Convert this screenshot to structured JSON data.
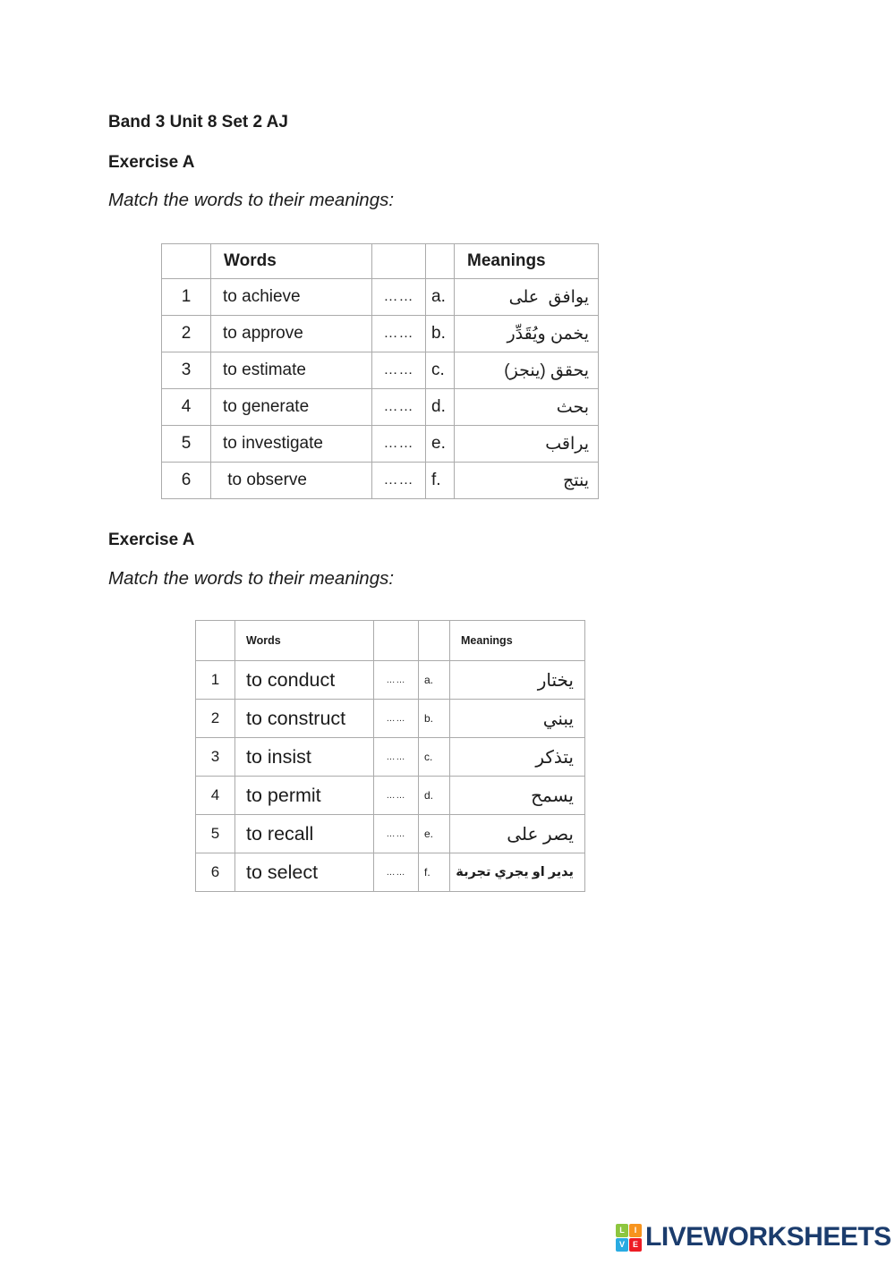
{
  "document": {
    "title": "Band 3 Unit 8 Set 2 AJ",
    "sections": [
      {
        "heading": "Exercise A",
        "instruction": "Match the words to their meanings:",
        "table": {
          "words_header": "Words",
          "meanings_header": "Meanings",
          "rows": [
            {
              "num": "1",
              "word": "to achieve",
              "answer_dots": "……",
              "letter": "a.",
              "meaning": "يوافق  على"
            },
            {
              "num": "2",
              "word": "to approve",
              "answer_dots": "……",
              "letter": "b.",
              "meaning": "يخمن ويُقَدِّر"
            },
            {
              "num": "3",
              "word": "to estimate",
              "answer_dots": "……",
              "letter": "c.",
              "meaning": "يحقق (ينجز)"
            },
            {
              "num": "4",
              "word": "to generate",
              "answer_dots": "……",
              "letter": "d.",
              "meaning": "بحث"
            },
            {
              "num": "5",
              "word": "to investigate",
              "answer_dots": "……",
              "letter": "e.",
              "meaning": "يراقب"
            },
            {
              "num": "6",
              "word": " to observe",
              "answer_dots": "……",
              "letter": "f.",
              "meaning": "ينتج"
            }
          ]
        }
      },
      {
        "heading": "Exercise A",
        "instruction": "Match the words to their meanings:",
        "table": {
          "words_header": "Words",
          "meanings_header": "Meanings",
          "rows": [
            {
              "num": "1",
              "word": "to conduct",
              "answer_dots": "……",
              "letter": "a.",
              "meaning": "يختار"
            },
            {
              "num": "2",
              "word": "to construct",
              "answer_dots": "……",
              "letter": "b.",
              "meaning": "يبني"
            },
            {
              "num": "3",
              "word": "to insist",
              "answer_dots": "……",
              "letter": "c.",
              "meaning": "يتذكر"
            },
            {
              "num": "4",
              "word": "to permit",
              "answer_dots": "……",
              "letter": "d.",
              "meaning": "يسمح"
            },
            {
              "num": "5",
              "word": "to recall",
              "answer_dots": "……",
              "letter": "e.",
              "meaning": "يصر على"
            },
            {
              "num": "6",
              "word": "to select",
              "answer_dots": "……",
              "letter": "f.",
              "meaning": "يدير او يجري تجربة"
            }
          ]
        }
      }
    ]
  },
  "footer": {
    "brand": "LIVEWORKSHEETS",
    "brand_color": "#1b3c6d",
    "logo_letters": [
      "L",
      "I",
      "V",
      "E"
    ],
    "logo_colors": [
      "#8dc63f",
      "#f7941e",
      "#29abe2",
      "#ed1c24"
    ]
  }
}
